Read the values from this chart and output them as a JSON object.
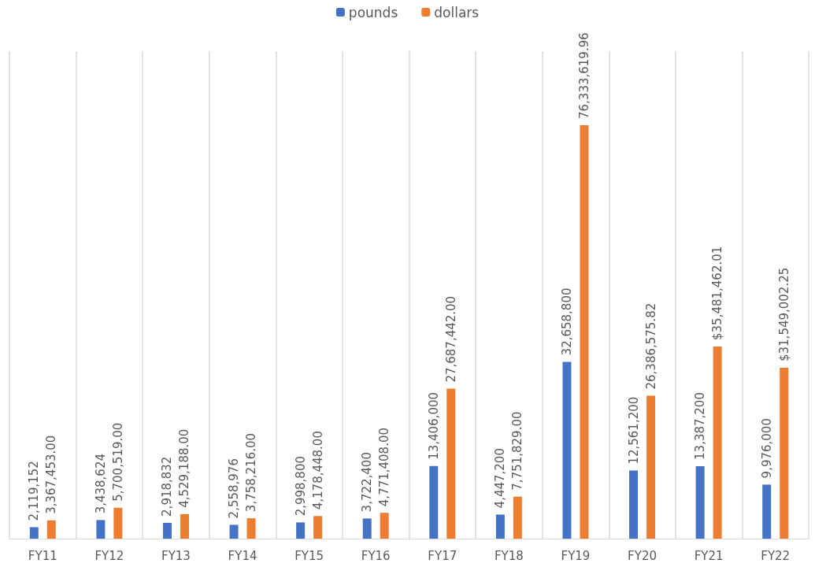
{
  "chart_data": {
    "type": "bar",
    "categories": [
      "FY11",
      "FY12",
      "FY13",
      "FY14",
      "FY15",
      "FY16",
      "FY17",
      "FY18",
      "FY19",
      "FY20",
      "FY21",
      "FY22"
    ],
    "series": [
      {
        "name": "pounds",
        "color": "#4472c4",
        "values": [
          2119152,
          3438624,
          2918832,
          2558976,
          2998800,
          3722400,
          13406000,
          4447200,
          32658800,
          12561200,
          13387200,
          9976000
        ],
        "value_labels": [
          "2,119,152",
          "3,438,624",
          "2,918,832",
          "2,558,976",
          "2,998,800",
          "3,722,400",
          "13,406,000",
          "4,447,200",
          "32,658,800",
          "12,561,200",
          "13,387,200",
          "9,976,000"
        ]
      },
      {
        "name": "dollars",
        "color": "#ed7d31",
        "values": [
          3367453.0,
          5700519.0,
          4529188.0,
          3758216.0,
          4178448.0,
          4771408.0,
          27687442.0,
          7751829.0,
          76333619.96,
          26386575.82,
          35481462.01,
          31549002.25
        ],
        "value_labels": [
          "3,367,453.00",
          "5,700,519.00",
          "4,529,188.00",
          "3,758,216.00",
          "4,178,448.00",
          "4,771,408.00",
          "27,687,442.00",
          "7,751,829.00",
          "76,333,619.96",
          "26,386,575.82",
          "$35,481,462.01",
          "$31,549,002.25"
        ]
      }
    ],
    "ylim": [
      0,
      90000000
    ],
    "grid": "x",
    "legend": "top"
  }
}
